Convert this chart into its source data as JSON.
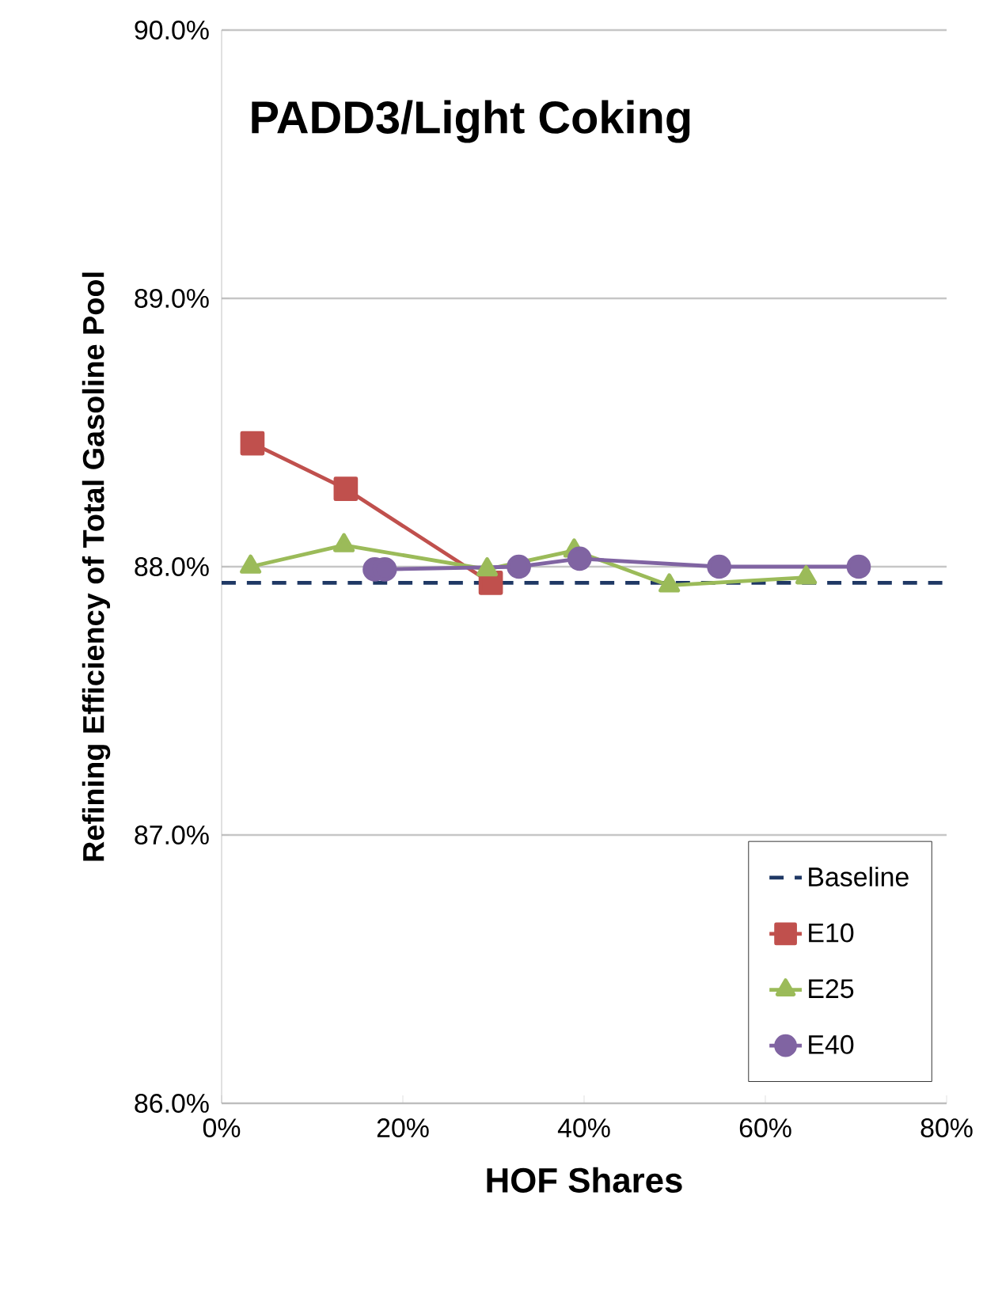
{
  "chart_data": {
    "type": "line",
    "title": "PADD3/Light Coking",
    "xlabel": "HOF Shares",
    "ylabel": "Refining Efficiency of Total Gasoline Pool",
    "xlim": [
      0,
      80
    ],
    "xticks": [
      {
        "value": 0,
        "label": "0%"
      },
      {
        "value": 20,
        "label": "20%"
      },
      {
        "value": 40,
        "label": "40%"
      },
      {
        "value": 60,
        "label": "60%"
      },
      {
        "value": 80,
        "label": "80%"
      }
    ],
    "ylim": [
      86,
      90
    ],
    "yticks": [
      {
        "value": 86,
        "label": "86.0%"
      },
      {
        "value": 87,
        "label": "87.0%"
      },
      {
        "value": 88,
        "label": "88.0%"
      },
      {
        "value": 89,
        "label": "89.0%"
      },
      {
        "value": 90,
        "label": "90.0%"
      }
    ],
    "grid": "y",
    "legend": "right",
    "series": [
      {
        "name": "Baseline",
        "color": "#1f3864",
        "marker": "none",
        "line_style": "dashed",
        "x": [
          0,
          80
        ],
        "values": [
          87.94,
          87.94
        ]
      },
      {
        "name": "E10",
        "color": "#c0504d",
        "marker": "square",
        "line_style": "solid",
        "x": [
          3.4,
          13.7,
          29.7
        ],
        "values": [
          88.46,
          88.29,
          87.94
        ]
      },
      {
        "name": "E25",
        "color": "#9bbb59",
        "marker": "triangle",
        "line_style": "solid",
        "x": [
          3.2,
          13.5,
          29.3,
          38.9,
          49.4,
          64.5
        ],
        "values": [
          88.0,
          88.08,
          87.99,
          88.06,
          87.93,
          87.96
        ]
      },
      {
        "name": "E40",
        "color": "#8064a2",
        "marker": "circle",
        "line_style": "solid",
        "x": [
          16.9,
          18.0,
          32.8,
          39.5,
          54.9,
          70.3
        ],
        "values": [
          87.99,
          87.99,
          88.0,
          88.03,
          88.0,
          88.0
        ]
      }
    ]
  }
}
